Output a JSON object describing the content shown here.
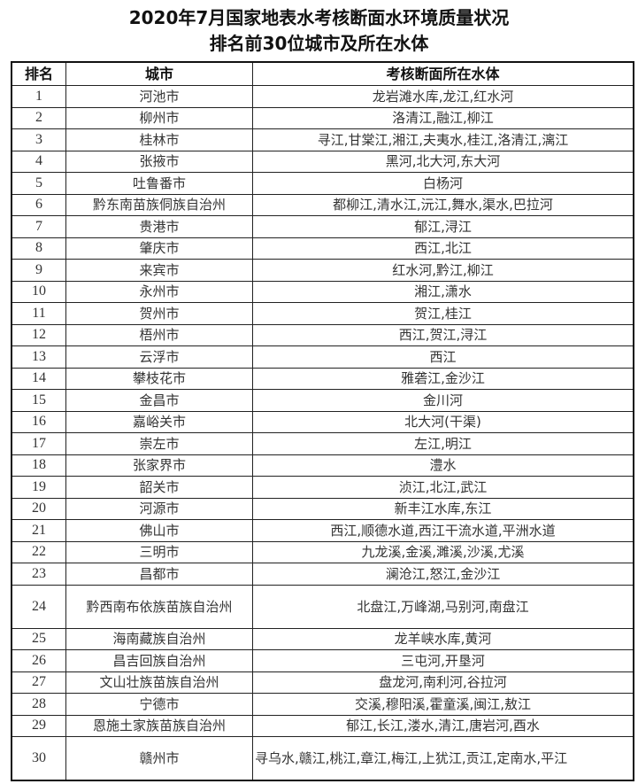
{
  "title_line1": "2020年7月国家地表水考核断面水环境质量状况",
  "title_line2": "排名前30位城市及所在水体",
  "headers": [
    "排名",
    "城市",
    "考核断面所在水体"
  ],
  "rows": [
    {
      "rank": "1",
      "city": "河池市",
      "water": "龙岩滩水库,龙江,红水河"
    },
    {
      "rank": "2",
      "city": "柳州市",
      "water": "洛清江,融江,柳江"
    },
    {
      "rank": "3",
      "city": "桂林市",
      "water": "寻江,甘棠江,湘江,夫夷水,桂江,洛清江,漓江"
    },
    {
      "rank": "4",
      "city": "张掖市",
      "water": "黑河,北大河,东大河"
    },
    {
      "rank": "5",
      "city": "吐鲁番市",
      "water": "白杨河"
    },
    {
      "rank": "6",
      "city": "黔东南苗族侗族自治州",
      "water": "都柳江,清水江,沅江,舞水,渠水,巴拉河"
    },
    {
      "rank": "7",
      "city": "贵港市",
      "water": "郁江,浔江"
    },
    {
      "rank": "8",
      "city": "肇庆市",
      "water": "西江,北江"
    },
    {
      "rank": "9",
      "city": "来宾市",
      "water": "红水河,黔江,柳江"
    },
    {
      "rank": "10",
      "city": "永州市",
      "water": "湘江,潇水"
    },
    {
      "rank": "11",
      "city": "贺州市",
      "water": "贺江,桂江"
    },
    {
      "rank": "12",
      "city": "梧州市",
      "water": "西江,贺江,浔江"
    },
    {
      "rank": "13",
      "city": "云浮市",
      "water": "西江"
    },
    {
      "rank": "14",
      "city": "攀枝花市",
      "water": "雅砻江,金沙江"
    },
    {
      "rank": "15",
      "city": "金昌市",
      "water": "金川河"
    },
    {
      "rank": "16",
      "city": "嘉峪关市",
      "water": "北大河(干渠)"
    },
    {
      "rank": "17",
      "city": "崇左市",
      "water": "左江,明江"
    },
    {
      "rank": "18",
      "city": "张家界市",
      "water": "澧水"
    },
    {
      "rank": "19",
      "city": "韶关市",
      "water": "浈江,北江,武江"
    },
    {
      "rank": "20",
      "city": "河源市",
      "water": "新丰江水库,东江"
    },
    {
      "rank": "21",
      "city": "佛山市",
      "water": "西江,顺德水道,西江干流水道,平洲水道"
    },
    {
      "rank": "22",
      "city": "三明市",
      "water": "九龙溪,金溪,濉溪,沙溪,尤溪"
    },
    {
      "rank": "23",
      "city": "昌都市",
      "water": "澜沧江,怒江,金沙江"
    },
    {
      "rank": "24",
      "city": "黔西南布依族苗族自治州",
      "water": "北盘江,万峰湖,马别河,南盘江"
    },
    {
      "rank": "25",
      "city": "海南藏族自治州",
      "water": "龙羊峡水库,黄河"
    },
    {
      "rank": "26",
      "city": "昌吉回族自治州",
      "water": "三屯河,开垦河"
    },
    {
      "rank": "27",
      "city": "文山壮族苗族自治州",
      "water": "盘龙河,南利河,谷拉河"
    },
    {
      "rank": "28",
      "city": "宁德市",
      "water": "交溪,穆阳溪,霍童溪,闽江,敖江"
    },
    {
      "rank": "29",
      "city": "恩施土家族苗族自治州",
      "water": "郁江,长江,溇水,清江,唐岩河,酉水"
    },
    {
      "rank": "30",
      "city": "赣州市",
      "water": "寻乌水,赣江,桃江,章江,梅江,上犹江,贡江,定南水,平江"
    }
  ]
}
